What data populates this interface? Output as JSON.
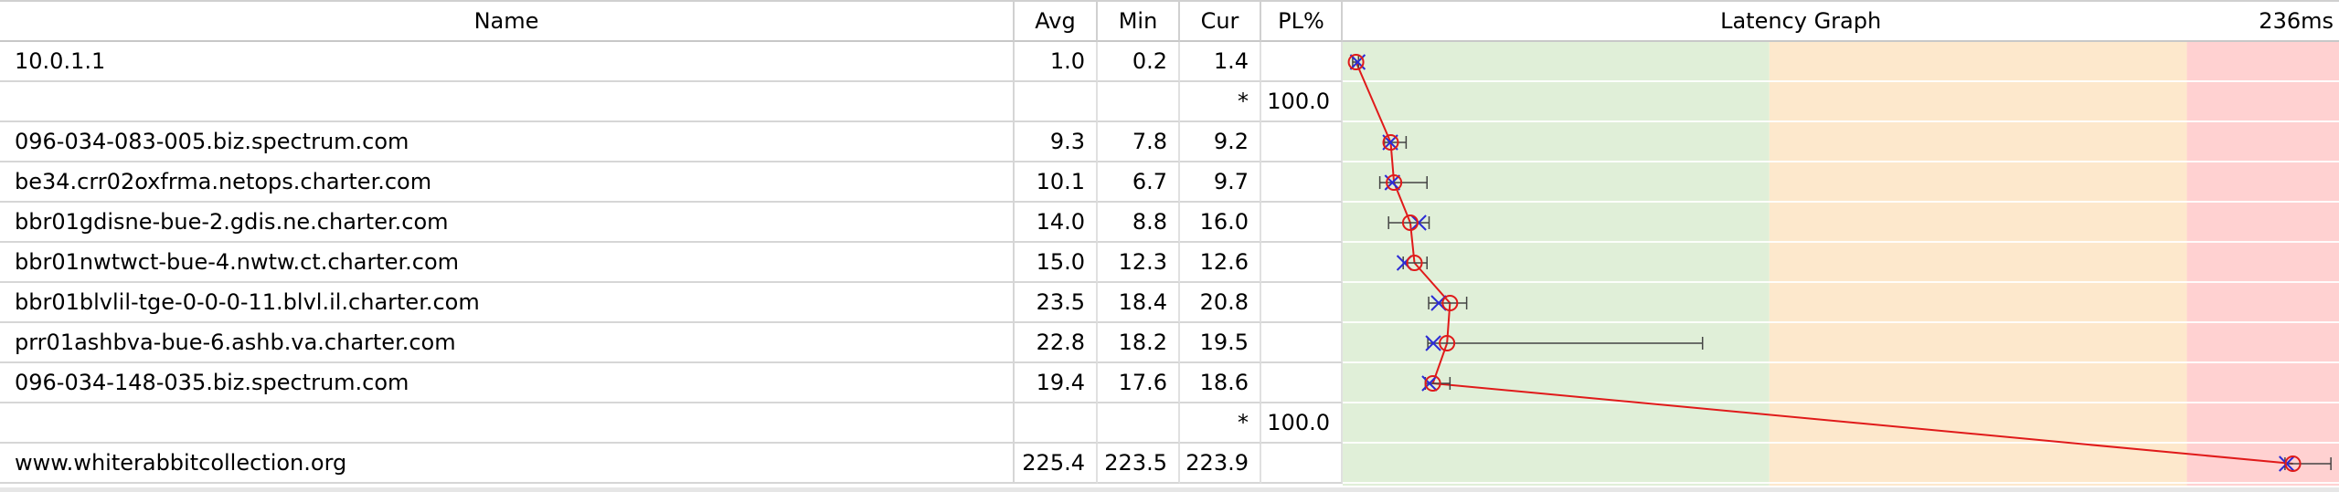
{
  "headers": {
    "name": "Name",
    "avg": "Avg",
    "min": "Min",
    "cur": "Cur",
    "pl": "PL%",
    "graph": "Latency Graph",
    "scale_max": "236ms"
  },
  "scale_ms": 236,
  "zones": [
    {
      "from_ms": 0,
      "to_ms": 100,
      "color": "#e0efd8"
    },
    {
      "from_ms": 100,
      "to_ms": 200,
      "color": "#fde8cc"
    },
    {
      "from_ms": 200,
      "to_ms": 236,
      "color": "#ffd1d1"
    }
  ],
  "colors": {
    "line": "#e01a1a",
    "cur_marker": "#2b2bd6",
    "range": "#444444"
  },
  "hops": [
    {
      "name": "10.0.1.1",
      "avg": "1.0",
      "min": "0.2",
      "cur": "1.4",
      "pl": "",
      "avg_v": 1.0,
      "min_v": 0.2,
      "cur_v": 1.4,
      "max_v": 1.6
    },
    {
      "name": "",
      "avg": "",
      "min": "",
      "cur": "*",
      "pl": "100.0"
    },
    {
      "name": "096-034-083-005.biz.spectrum.com",
      "avg": "9.3",
      "min": "7.8",
      "cur": "9.2",
      "pl": "",
      "avg_v": 9.3,
      "min_v": 7.8,
      "cur_v": 9.2,
      "max_v": 13.0
    },
    {
      "name": "be34.crr02oxfrma.netops.charter.com",
      "avg": "10.1",
      "min": "6.7",
      "cur": "9.7",
      "pl": "",
      "avg_v": 10.1,
      "min_v": 6.7,
      "cur_v": 9.7,
      "max_v": 18.0
    },
    {
      "name": "bbr01gdisne-bue-2.gdis.ne.charter.com",
      "avg": "14.0",
      "min": "8.8",
      "cur": "16.0",
      "pl": "",
      "avg_v": 14.0,
      "min_v": 8.8,
      "cur_v": 16.0,
      "max_v": 18.5
    },
    {
      "name": "bbr01nwtwct-bue-4.nwtw.ct.charter.com",
      "avg": "15.0",
      "min": "12.3",
      "cur": "12.6",
      "pl": "",
      "avg_v": 15.0,
      "min_v": 12.3,
      "cur_v": 12.6,
      "max_v": 18.0
    },
    {
      "name": "bbr01blvlil-tge-0-0-0-11.blvl.il.charter.com",
      "avg": "23.5",
      "min": "18.4",
      "cur": "20.8",
      "pl": "",
      "avg_v": 23.5,
      "min_v": 18.4,
      "cur_v": 20.8,
      "max_v": 27.5
    },
    {
      "name": "prr01ashbva-bue-6.ashb.va.charter.com",
      "avg": "22.8",
      "min": "18.2",
      "cur": "19.5",
      "pl": "",
      "avg_v": 22.8,
      "min_v": 18.2,
      "cur_v": 19.5,
      "max_v": 84.0
    },
    {
      "name": "096-034-148-035.biz.spectrum.com",
      "avg": "19.4",
      "min": "17.6",
      "cur": "18.6",
      "pl": "",
      "avg_v": 19.4,
      "min_v": 17.6,
      "cur_v": 18.6,
      "max_v": 23.5
    },
    {
      "name": "",
      "avg": "",
      "min": "",
      "cur": "*",
      "pl": "100.0"
    },
    {
      "name": "www.whiterabbitcollection.org",
      "avg": "225.4",
      "min": "223.5",
      "cur": "223.9",
      "pl": "",
      "avg_v": 225.4,
      "min_v": 223.5,
      "cur_v": 223.9,
      "max_v": 234.5
    }
  ]
}
